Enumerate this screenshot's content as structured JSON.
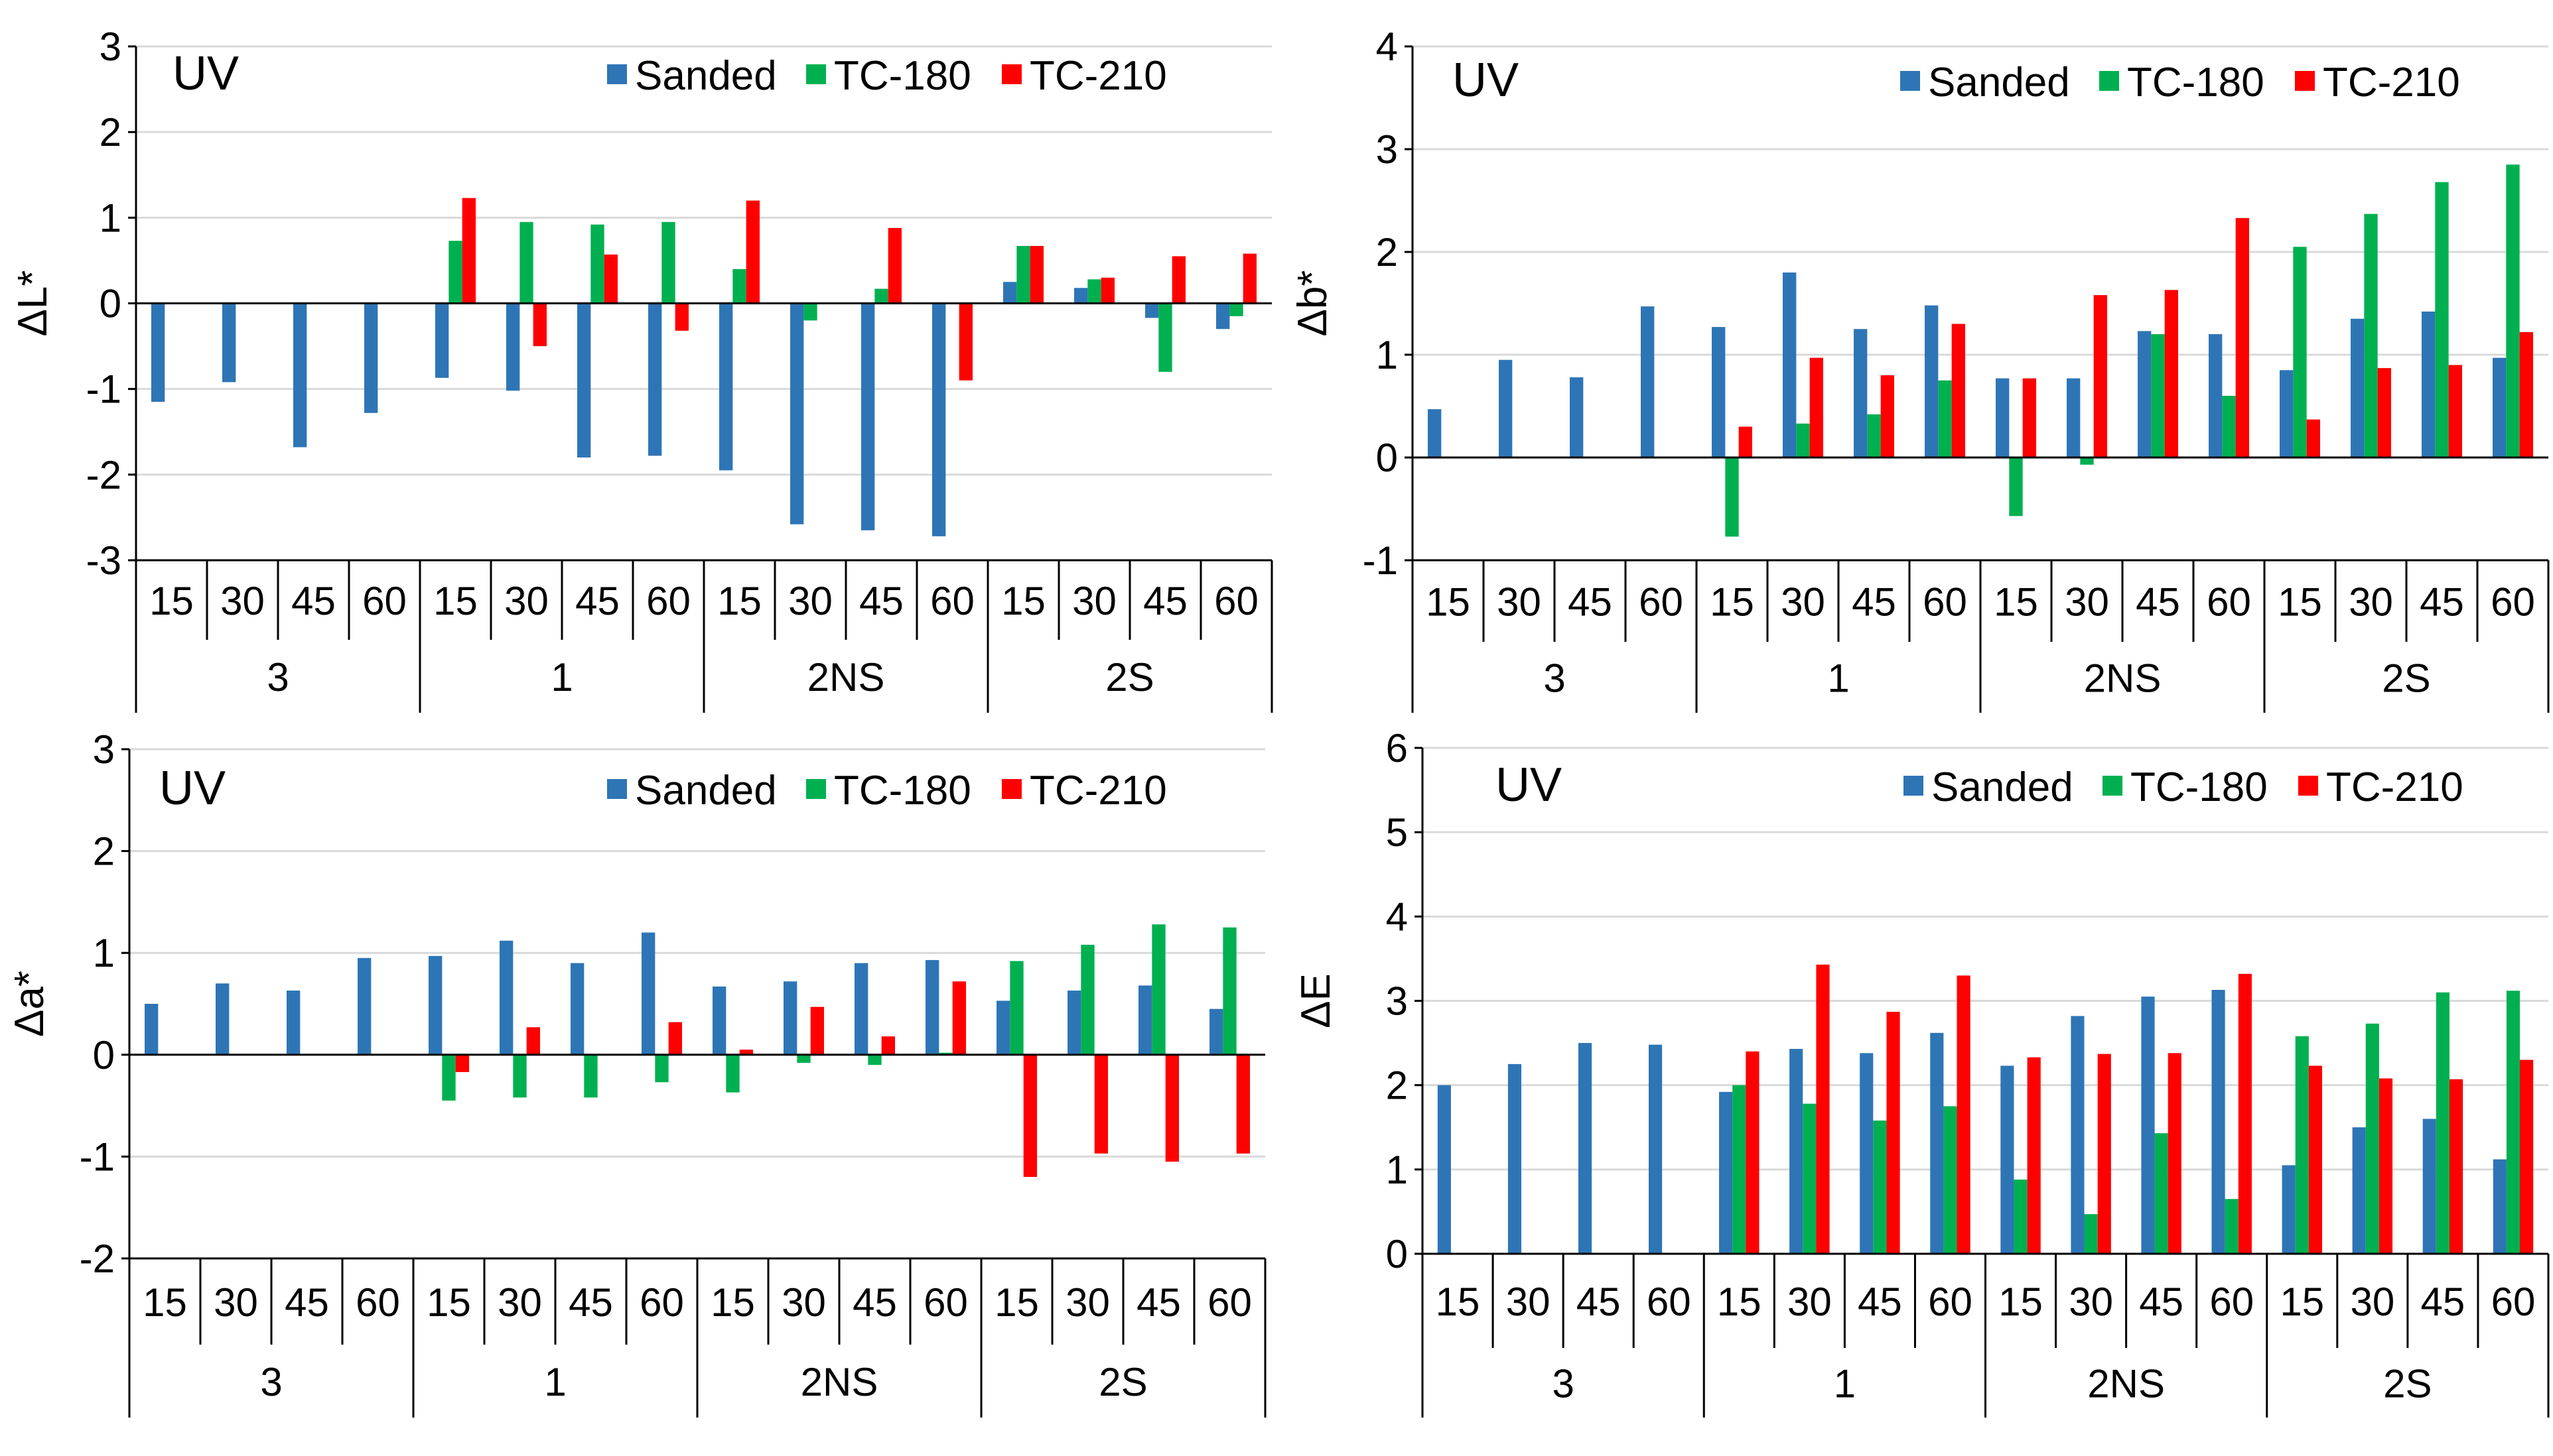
{
  "colors": {
    "Sanded": "#2e75b6",
    "TC-180": "#00b050",
    "TC-210": "#ff0000"
  },
  "chart_data": [
    {
      "type": "bar",
      "title": "UV",
      "ylabel": "ΔL*",
      "ylim": [
        -3,
        3
      ],
      "yticks": [
        -3,
        -2,
        -1,
        0,
        1,
        2,
        3
      ],
      "grid": true,
      "legend": "top-right",
      "categories": [
        "15",
        "30",
        "45",
        "60",
        "15",
        "30",
        "45",
        "60",
        "15",
        "30",
        "45",
        "60",
        "15",
        "30",
        "45",
        "60"
      ],
      "groups": [
        "3",
        "1",
        "2NS",
        "2S"
      ],
      "series": [
        {
          "name": "Sanded",
          "values": [
            -1.15,
            -0.92,
            -1.68,
            -1.28,
            -0.87,
            -1.02,
            -1.8,
            -1.78,
            -1.95,
            -2.58,
            -2.65,
            -2.72,
            0.25,
            0.18,
            -0.17,
            -0.3
          ]
        },
        {
          "name": "TC-180",
          "values": [
            null,
            null,
            null,
            null,
            0.73,
            0.95,
            0.92,
            0.95,
            0.4,
            -0.2,
            0.17,
            null,
            0.67,
            0.28,
            -0.8,
            -0.15
          ]
        },
        {
          "name": "TC-210",
          "values": [
            null,
            null,
            null,
            null,
            1.23,
            -0.5,
            0.57,
            -0.32,
            1.2,
            null,
            0.88,
            -0.9,
            0.67,
            0.3,
            0.55,
            0.58
          ]
        }
      ]
    },
    {
      "type": "bar",
      "title": "UV",
      "ylabel": "Δb*",
      "ylim": [
        -1,
        4
      ],
      "yticks": [
        -1,
        0,
        1,
        2,
        3,
        4
      ],
      "grid": true,
      "legend": "top-right",
      "categories": [
        "15",
        "30",
        "45",
        "60",
        "15",
        "30",
        "45",
        "60",
        "15",
        "30",
        "45",
        "60",
        "15",
        "30",
        "45",
        "60"
      ],
      "groups": [
        "3",
        "1",
        "2NS",
        "2S"
      ],
      "series": [
        {
          "name": "Sanded",
          "values": [
            0.47,
            0.95,
            0.78,
            1.47,
            1.27,
            1.8,
            1.25,
            1.48,
            0.77,
            0.77,
            1.23,
            1.2,
            0.85,
            1.35,
            1.42,
            0.97
          ]
        },
        {
          "name": "TC-180",
          "values": [
            null,
            null,
            null,
            null,
            -0.77,
            0.33,
            0.42,
            0.75,
            -0.57,
            -0.07,
            1.2,
            0.6,
            2.05,
            2.37,
            2.68,
            2.85
          ]
        },
        {
          "name": "TC-210",
          "values": [
            null,
            null,
            null,
            null,
            0.3,
            0.97,
            0.8,
            1.3,
            0.77,
            1.58,
            1.63,
            2.33,
            0.37,
            0.87,
            0.9,
            1.22
          ]
        }
      ]
    },
    {
      "type": "bar",
      "title": "UV",
      "ylabel": "Δa*",
      "ylim": [
        -2,
        3
      ],
      "yticks": [
        -2,
        -1,
        0,
        1,
        2,
        3
      ],
      "grid": true,
      "legend": "top-right",
      "categories": [
        "15",
        "30",
        "45",
        "60",
        "15",
        "30",
        "45",
        "60",
        "15",
        "30",
        "45",
        "60",
        "15",
        "30",
        "45",
        "60"
      ],
      "groups": [
        "3",
        "1",
        "2NS",
        "2S"
      ],
      "series": [
        {
          "name": "Sanded",
          "values": [
            0.5,
            0.7,
            0.63,
            0.95,
            0.97,
            1.12,
            0.9,
            1.2,
            0.67,
            0.72,
            0.9,
            0.93,
            0.53,
            0.63,
            0.68,
            0.45
          ]
        },
        {
          "name": "TC-180",
          "values": [
            null,
            null,
            null,
            null,
            -0.45,
            -0.42,
            -0.42,
            -0.27,
            -0.37,
            -0.08,
            -0.1,
            0.02,
            0.92,
            1.08,
            1.28,
            1.25
          ]
        },
        {
          "name": "TC-210",
          "values": [
            null,
            null,
            null,
            null,
            -0.17,
            0.27,
            null,
            0.32,
            0.05,
            0.47,
            0.18,
            0.72,
            -1.2,
            -0.97,
            -1.05,
            -0.97
          ]
        }
      ]
    },
    {
      "type": "bar",
      "title": "UV",
      "ylabel": "ΔE",
      "ylim": [
        0,
        6
      ],
      "yticks": [
        0,
        1,
        2,
        3,
        4,
        5,
        6
      ],
      "grid": true,
      "legend": "top-right",
      "categories": [
        "15",
        "30",
        "45",
        "60",
        "15",
        "30",
        "45",
        "60",
        "15",
        "30",
        "45",
        "60",
        "15",
        "30",
        "45",
        "60"
      ],
      "groups": [
        "3",
        "1",
        "2NS",
        "2S"
      ],
      "series": [
        {
          "name": "Sanded",
          "values": [
            2.0,
            2.25,
            2.5,
            2.48,
            1.92,
            2.43,
            2.38,
            2.62,
            2.23,
            2.82,
            3.05,
            3.13,
            1.05,
            1.5,
            1.6,
            1.12
          ]
        },
        {
          "name": "TC-180",
          "values": [
            null,
            null,
            null,
            null,
            2.0,
            1.78,
            1.58,
            1.75,
            0.88,
            0.47,
            1.43,
            0.65,
            2.58,
            2.73,
            3.1,
            3.12
          ]
        },
        {
          "name": "TC-210",
          "values": [
            null,
            null,
            null,
            null,
            2.4,
            3.43,
            2.87,
            3.3,
            2.33,
            2.37,
            2.38,
            3.32,
            2.23,
            2.08,
            2.07,
            2.3
          ]
        }
      ]
    }
  ]
}
